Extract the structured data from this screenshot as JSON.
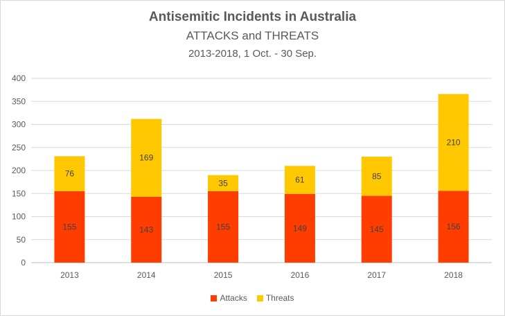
{
  "chart_data": {
    "type": "bar",
    "stacked": true,
    "title": "Antisemitic Incidents in Australia",
    "subtitle": "ATTACKS and THREATS",
    "subtitle2": "2013-2018, 1 Oct. - 30 Sep.",
    "categories": [
      "2013",
      "2014",
      "2015",
      "2016",
      "2017",
      "2018"
    ],
    "series": [
      {
        "name": "Attacks",
        "color": "#ff3d00",
        "values": [
          155,
          143,
          155,
          149,
          145,
          156
        ]
      },
      {
        "name": "Threats",
        "color": "#ffc800",
        "values": [
          76,
          169,
          35,
          61,
          85,
          210
        ]
      }
    ],
    "ylim": [
      0,
      400
    ],
    "yticks": [
      0,
      50,
      100,
      150,
      200,
      250,
      300,
      350,
      400
    ],
    "grid": true,
    "legend_position": "bottom"
  }
}
